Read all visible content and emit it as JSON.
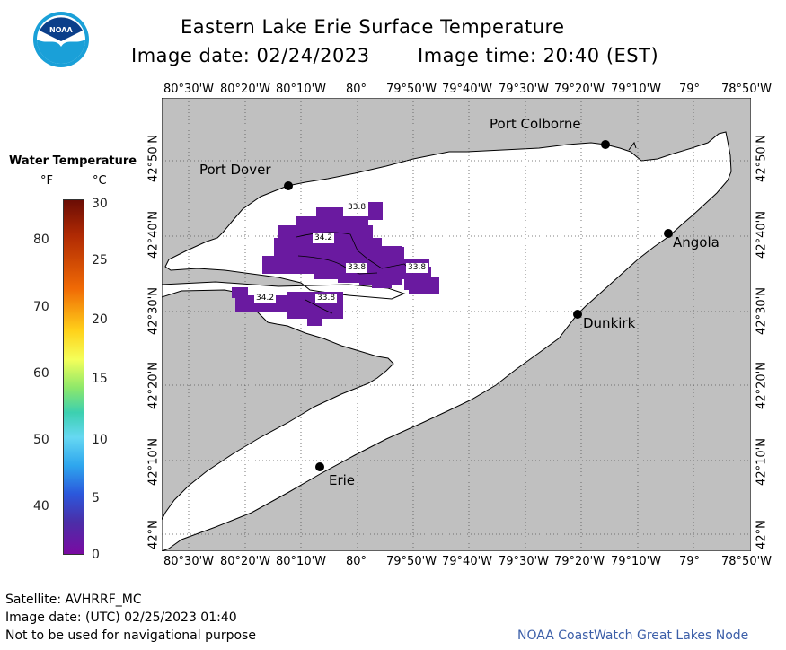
{
  "header": {
    "title": "Eastern Lake Erie Surface Temperature",
    "image_date": "Image date: 02/24/2023",
    "image_time": "Image time: 20:40 (EST)"
  },
  "logo": {
    "text": "NOAA"
  },
  "legend": {
    "title": "Water Temperature",
    "unit_f": "°F",
    "unit_c": "°C",
    "ticks_f": [
      "80",
      "70",
      "60",
      "50",
      "40"
    ],
    "ticks_c": [
      "30",
      "25",
      "20",
      "15",
      "10",
      "5",
      "0"
    ]
  },
  "map": {
    "lon_labels_top": [
      "80°30'W",
      "80°20'W",
      "80°10'W",
      "80°",
      "79°50'W",
      "79°40'W",
      "79°30'W",
      "79°20'W",
      "79°10'W",
      "79°",
      "78°50'W"
    ],
    "lon_labels_bottom": [
      "80°30'W",
      "80°20'W",
      "80°10'W",
      "80°",
      "79°50'W",
      "79°40'W",
      "79°30'W",
      "79°20'W",
      "79°10'W",
      "79°",
      "78°50'W"
    ],
    "lat_labels_left": [
      "42°50'N",
      "42°40'N",
      "42°30'N",
      "42°20'N",
      "42°10'N",
      "42°N"
    ],
    "lat_labels_right": [
      "42°50'N",
      "42°40'N",
      "42°30'N",
      "42°20'N",
      "42°10'N",
      "42°N"
    ],
    "cities": [
      "Port Colborne",
      "Port Dover",
      "Angola",
      "Dunkirk",
      "Erie"
    ],
    "isotherm_labels": [
      "33.8",
      "34.2",
      "33.8",
      "33.8",
      "34.2",
      "33.8"
    ],
    "colors": {
      "land": "#c0c0c0",
      "water": "#ffffff",
      "cold_water": "#6a1aa0"
    }
  },
  "footer": {
    "satellite": "Satellite: AVHRRF_MC",
    "utc_date": "Image date: (UTC) 02/25/2023  01:40",
    "disclaimer": "Not to be used for navigational purpose",
    "credit": "NOAA CoastWatch Great Lakes Node"
  }
}
